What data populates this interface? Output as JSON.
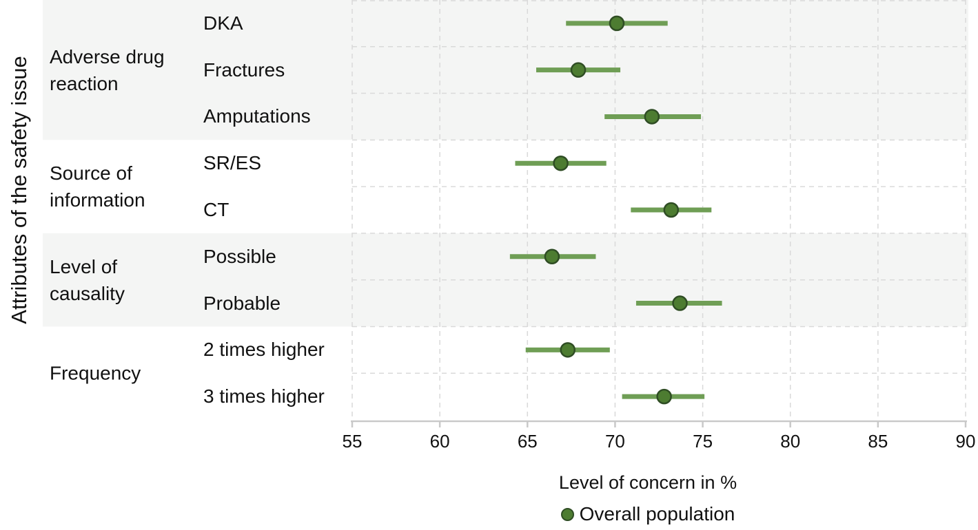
{
  "chart_data": {
    "type": "scatter",
    "subtype": "forest-dot-with-ci",
    "title": "",
    "xlabel": "Level of concern in %",
    "ylabel": "Attributes of the safety issue",
    "xlim": [
      55,
      90
    ],
    "xticks": [
      55,
      60,
      65,
      70,
      75,
      80,
      85,
      90
    ],
    "grid": "dashed-horizontal-and-vertical",
    "legend_position": "bottom",
    "legend": [
      {
        "label": "Overall population"
      }
    ],
    "series_name": "Overall population",
    "groups": [
      {
        "label": "Adverse drug reaction",
        "shaded": true,
        "items": [
          {
            "label": "DKA",
            "value": 70.1,
            "ci": [
              67.2,
              73.0
            ]
          },
          {
            "label": "Fractures",
            "value": 67.9,
            "ci": [
              65.5,
              70.3
            ]
          },
          {
            "label": "Amputations",
            "value": 72.1,
            "ci": [
              69.4,
              74.9
            ]
          }
        ]
      },
      {
        "label": "Source of information",
        "shaded": false,
        "items": [
          {
            "label": "SR/ES",
            "value": 66.9,
            "ci": [
              64.3,
              69.5
            ]
          },
          {
            "label": "CT",
            "value": 73.2,
            "ci": [
              70.9,
              75.5
            ]
          }
        ]
      },
      {
        "label": "Level of causality",
        "shaded": true,
        "items": [
          {
            "label": "Possible",
            "value": 66.4,
            "ci": [
              64.0,
              68.9
            ]
          },
          {
            "label": "Probable",
            "value": 73.7,
            "ci": [
              71.2,
              76.1
            ]
          }
        ]
      },
      {
        "label": "Frequency",
        "shaded": false,
        "items": [
          {
            "label": "2 times higher",
            "value": 67.3,
            "ci": [
              64.9,
              69.7
            ]
          },
          {
            "label": "3 times higher",
            "value": 72.8,
            "ci": [
              70.4,
              75.1
            ]
          }
        ]
      }
    ],
    "colors": {
      "ci_line": "#6f9e55",
      "dot_fill": "#4d7c31",
      "dot_stroke": "#2f4d24",
      "band": "#f4f5f4",
      "grid": "#d9d9d9",
      "axis": "#c9c9c9",
      "text": "#111111"
    }
  }
}
